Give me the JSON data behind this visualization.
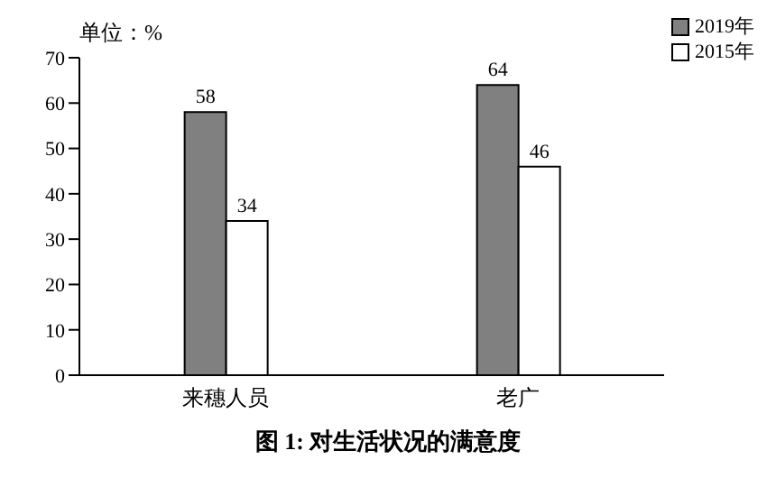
{
  "chart_data": {
    "type": "bar",
    "title": "图 1: 对生活状况的满意度",
    "annotations": [
      "单位：%"
    ],
    "categories": [
      "来穗人员",
      "老广"
    ],
    "series": [
      {
        "name": "2019年",
        "color": "#808080",
        "values": [
          58,
          64
        ]
      },
      {
        "name": "2015年",
        "color": "#ffffff",
        "values": [
          34,
          46
        ]
      }
    ],
    "ylim": [
      0,
      70
    ],
    "yticks": [
      0,
      10,
      20,
      30,
      40,
      50,
      60,
      70
    ],
    "grid": false,
    "legend": "top right",
    "data_labels": true
  }
}
